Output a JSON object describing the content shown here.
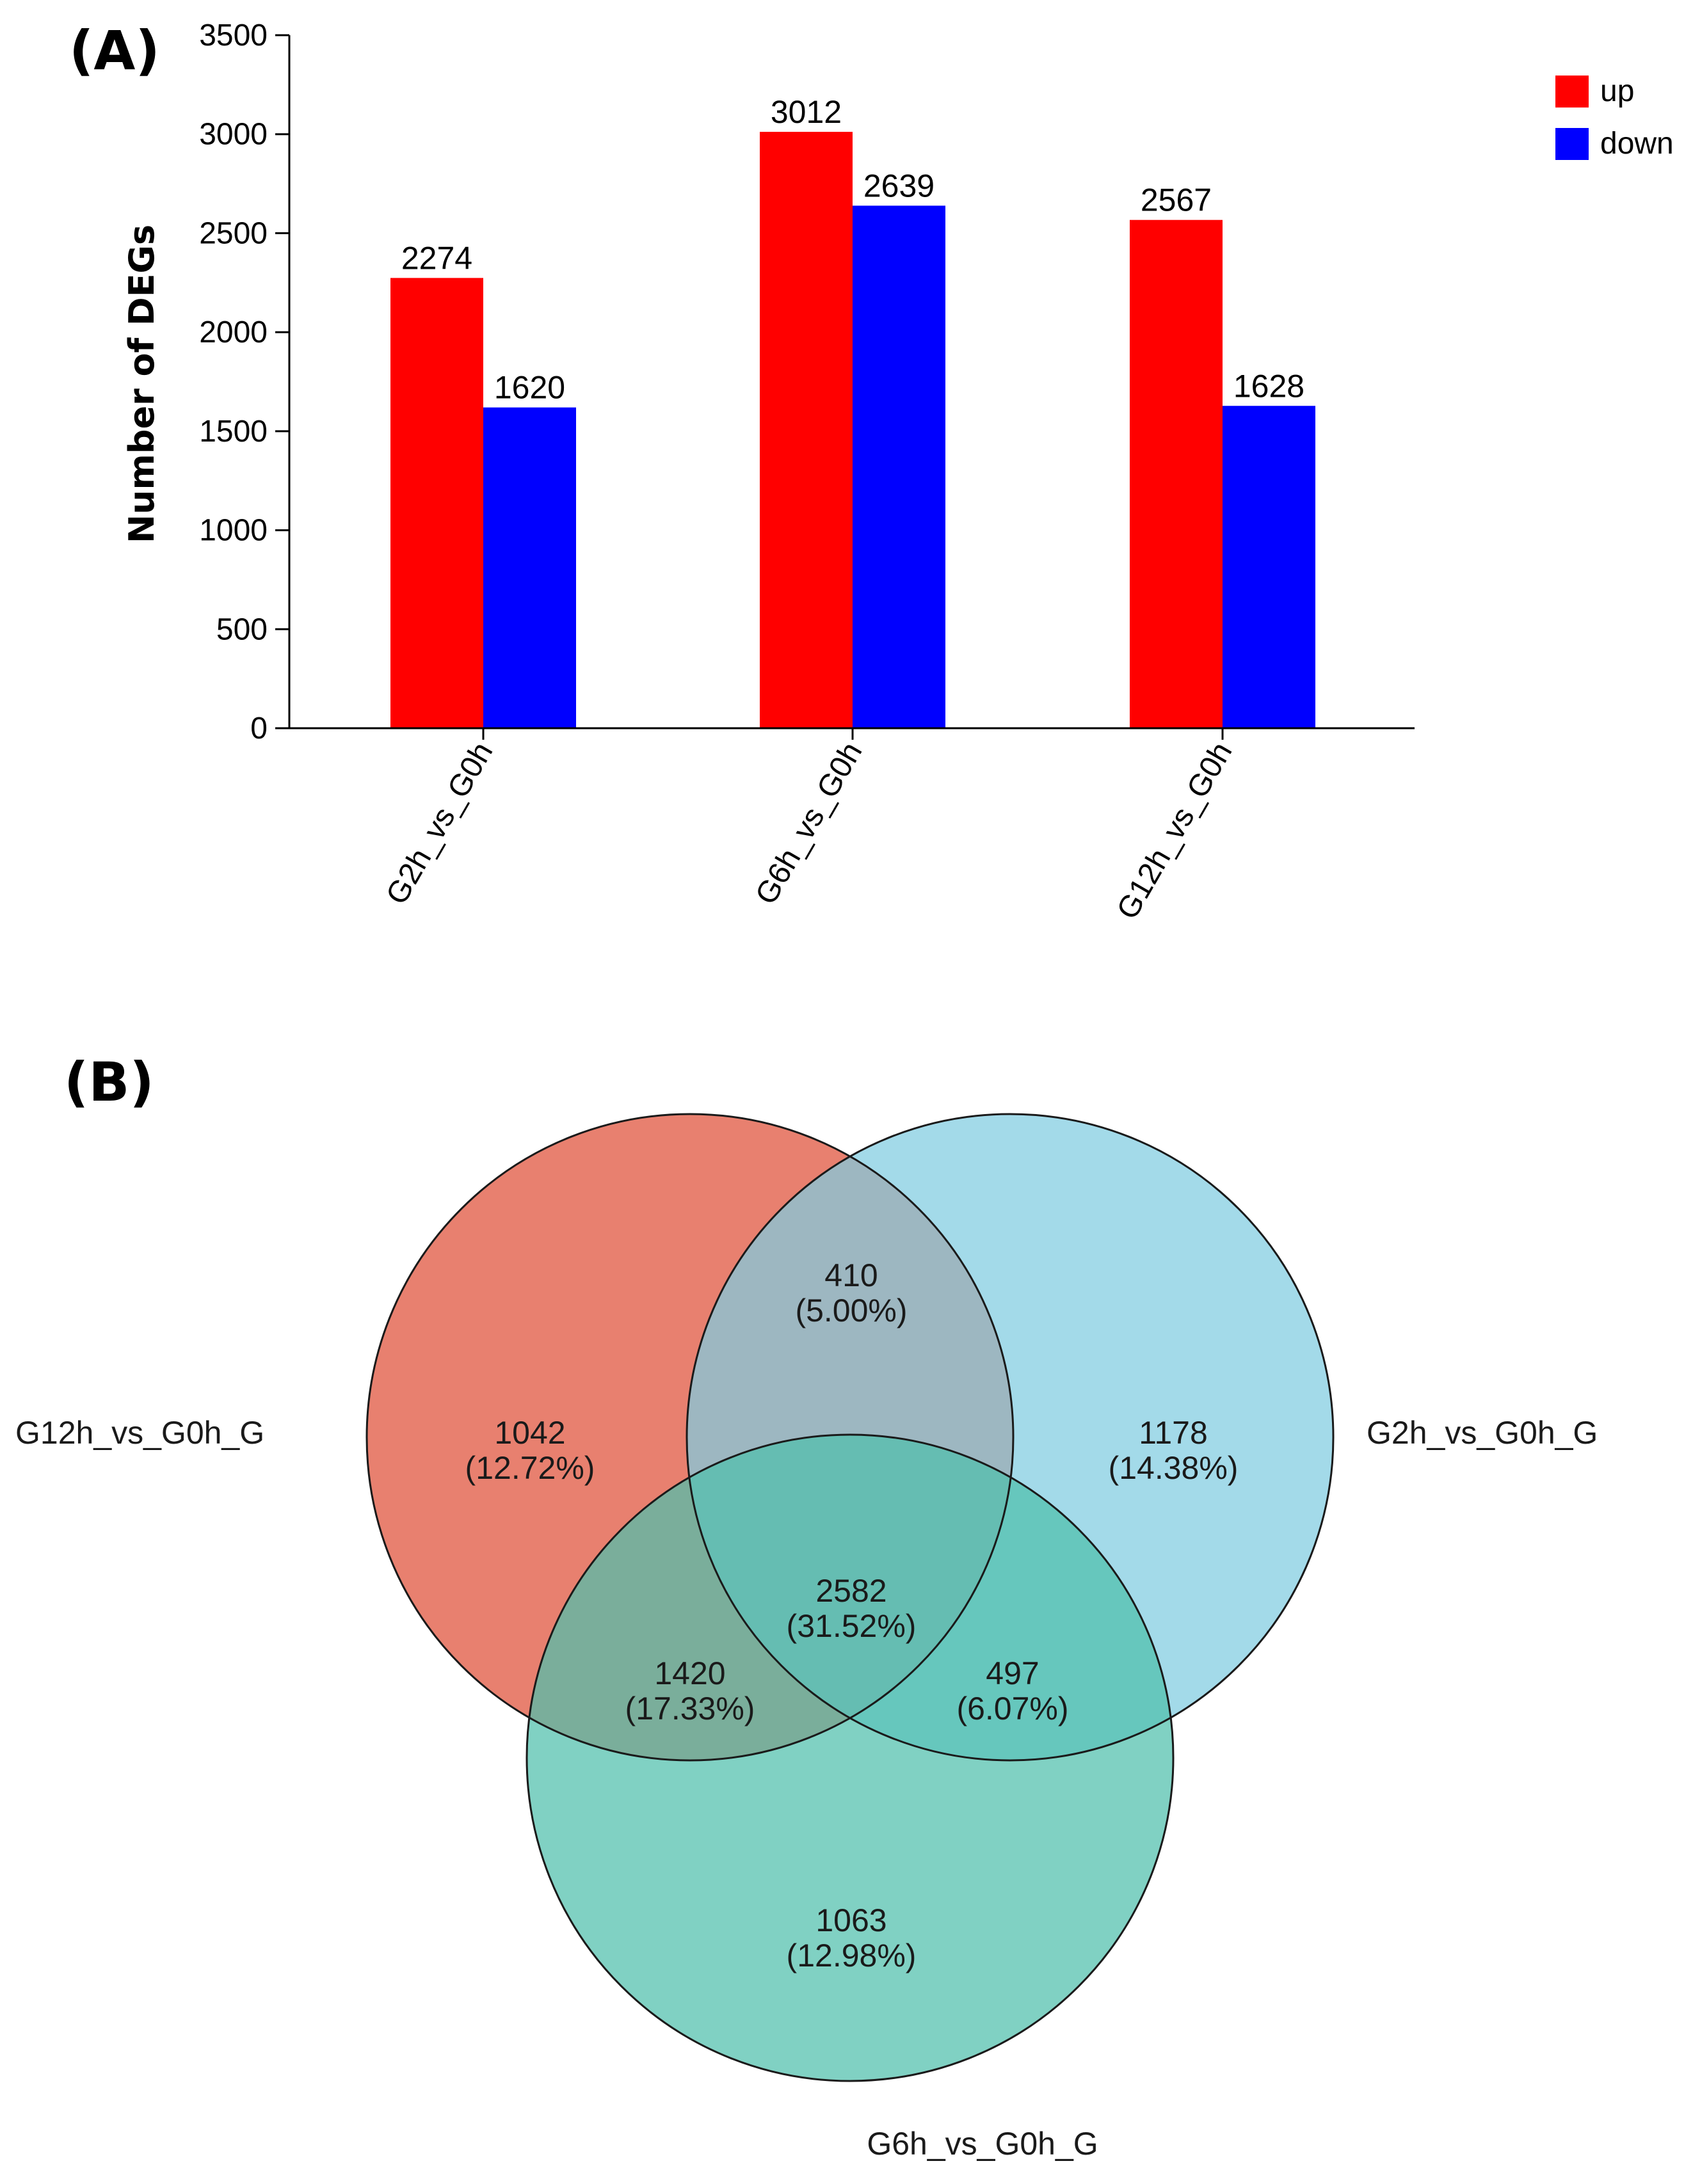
{
  "panel_a": {
    "letter": "(A)"
  },
  "panel_b": {
    "letter": "(B)"
  },
  "chart_data": [
    {
      "type": "bar",
      "title": "",
      "xlabel": "",
      "ylabel": "Number of DEGs",
      "ylim": [
        0,
        3500
      ],
      "yticks": [
        0,
        500,
        1000,
        1500,
        2000,
        2500,
        3000,
        3500
      ],
      "categories": [
        "G2h_vs_G0h",
        "G6h_vs_G0h",
        "G12h_vs_G0h"
      ],
      "series": [
        {
          "name": "up",
          "color": "#ff0000",
          "values": [
            2274,
            3012,
            2567
          ]
        },
        {
          "name": "down",
          "color": "#0000ff",
          "values": [
            1620,
            2639,
            1628
          ]
        }
      ],
      "legend_position": "top-right"
    },
    {
      "type": "venn",
      "sets": [
        {
          "name": "G12h_vs_G0h_G",
          "color": "#e8806f"
        },
        {
          "name": "G2h_vs_G0h_G",
          "color": "#7fcce0"
        },
        {
          "name": "G6h_vs_G0h_G",
          "color": "#4fbfac"
        }
      ],
      "regions": [
        {
          "key": "G12h_only",
          "count": "1042",
          "percent": "(12.72%)"
        },
        {
          "key": "G2h_only",
          "count": "1178",
          "percent": "(14.38%)"
        },
        {
          "key": "G6h_only",
          "count": "1063",
          "percent": "(12.98%)"
        },
        {
          "key": "G12h_G2h",
          "count": "410",
          "percent": "(5.00%)"
        },
        {
          "key": "G12h_G6h",
          "count": "1420",
          "percent": "(17.33%)"
        },
        {
          "key": "G2h_G6h",
          "count": "497",
          "percent": "(6.07%)"
        },
        {
          "key": "all_three",
          "count": "2582",
          "percent": "(31.52%)"
        }
      ]
    }
  ]
}
